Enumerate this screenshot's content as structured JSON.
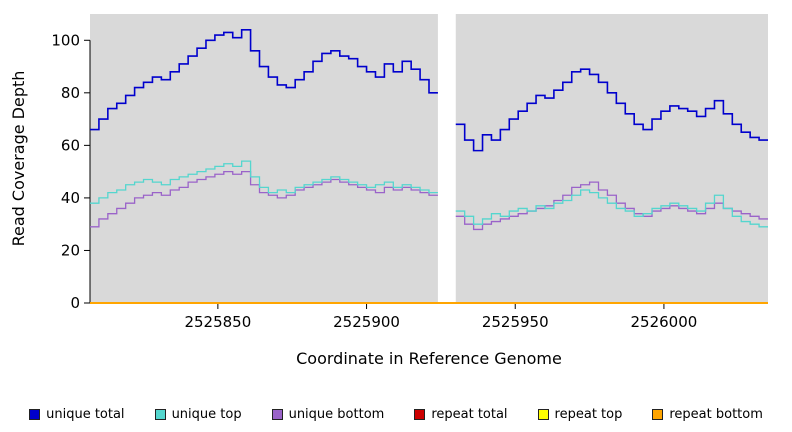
{
  "figure": {
    "xlabel": "Coordinate in Reference Genome",
    "ylabel": "Read Coverage Depth"
  },
  "chart_data": {
    "type": "line",
    "subtype": "step",
    "title": "",
    "xlabel": "Coordinate in Reference Genome",
    "ylabel": "Read Coverage Depth",
    "xlim": [
      2525807,
      2526035
    ],
    "ylim": [
      0,
      110
    ],
    "x_ticks": [
      2525850,
      2525900,
      2525950,
      2526000
    ],
    "y_ticks": [
      0,
      20,
      40,
      60,
      80,
      100
    ],
    "plot_bg": "#d9d9d9",
    "gap_region": [
      2525924,
      2525930
    ],
    "x_start": 2525807,
    "x_step": 3,
    "grid": false,
    "legend_position": "bottom",
    "draw_order": [
      3,
      4,
      5,
      2,
      1,
      0
    ],
    "series": [
      {
        "name": "unique total",
        "slug": "unique-total",
        "color": "#0000CD",
        "width": 1.6,
        "values": [
          66,
          70,
          74,
          76,
          79,
          82,
          84,
          86,
          85,
          88,
          91,
          94,
          97,
          100,
          102,
          103,
          101,
          104,
          96,
          90,
          86,
          83,
          82,
          85,
          88,
          92,
          95,
          96,
          94,
          93,
          90,
          88,
          86,
          91,
          88,
          92,
          89,
          85,
          80,
          null,
          null,
          68,
          62,
          58,
          64,
          62,
          66,
          70,
          73,
          76,
          79,
          78,
          81,
          84,
          88,
          89,
          87,
          84,
          80,
          76,
          72,
          68,
          66,
          70,
          73,
          75,
          74,
          73,
          71,
          74,
          77,
          72,
          68,
          65,
          63,
          62
        ]
      },
      {
        "name": "unique top",
        "slug": "unique-top",
        "color": "#54D6CE",
        "width": 1.3,
        "values": [
          38,
          40,
          42,
          43,
          45,
          46,
          47,
          46,
          45,
          47,
          48,
          49,
          50,
          51,
          52,
          53,
          52,
          54,
          48,
          44,
          42,
          43,
          42,
          44,
          45,
          46,
          47,
          48,
          47,
          46,
          45,
          44,
          45,
          46,
          44,
          45,
          44,
          43,
          42,
          null,
          null,
          35,
          33,
          30,
          32,
          34,
          33,
          35,
          36,
          35,
          37,
          36,
          38,
          39,
          41,
          43,
          42,
          40,
          38,
          36,
          35,
          33,
          34,
          36,
          37,
          38,
          37,
          36,
          35,
          38,
          41,
          36,
          33,
          31,
          30,
          29
        ]
      },
      {
        "name": "unique bottom",
        "slug": "unique-bottom",
        "color": "#9A63C9",
        "width": 1.3,
        "values": [
          29,
          32,
          34,
          36,
          38,
          40,
          41,
          42,
          41,
          43,
          44,
          46,
          47,
          48,
          49,
          50,
          49,
          50,
          45,
          42,
          41,
          40,
          41,
          43,
          44,
          45,
          46,
          47,
          46,
          45,
          44,
          43,
          42,
          44,
          43,
          44,
          43,
          42,
          41,
          null,
          null,
          33,
          30,
          28,
          30,
          31,
          32,
          33,
          34,
          35,
          36,
          37,
          39,
          41,
          44,
          45,
          46,
          43,
          41,
          38,
          36,
          34,
          33,
          35,
          36,
          37,
          36,
          35,
          34,
          36,
          38,
          36,
          35,
          34,
          33,
          32
        ]
      },
      {
        "name": "repeat total",
        "slug": "repeat-total",
        "color": "#CC0000",
        "width": 1.5,
        "constant": 0
      },
      {
        "name": "repeat top",
        "slug": "repeat-top",
        "color": "#FFFF00",
        "width": 1.5,
        "constant": 0
      },
      {
        "name": "repeat bottom",
        "slug": "repeat-bottom",
        "color": "#FFA500",
        "width": 2,
        "constant": 0
      }
    ]
  }
}
